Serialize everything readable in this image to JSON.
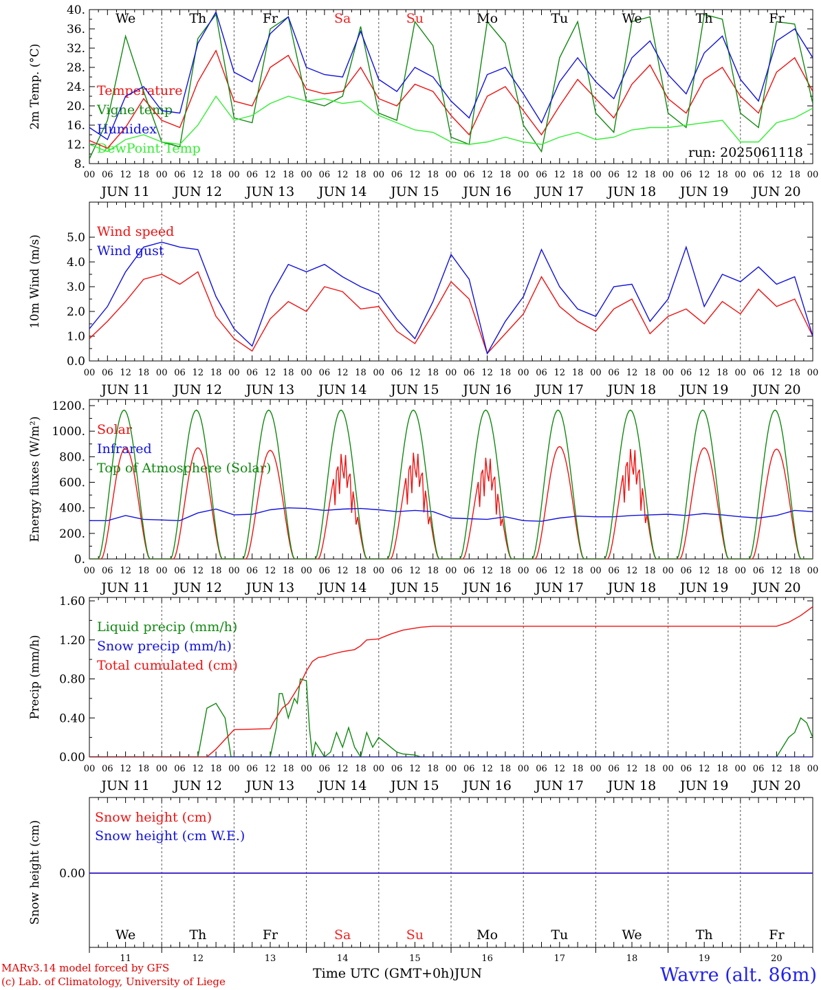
{
  "meta": {
    "run": "run: 2025061118",
    "credit_line1": "MARv3.14 model forced by GFS",
    "credit_line2": "(c) Lab. of Climatology, University of Liege",
    "station": "Wavre (alt. 86m)",
    "time_axis_label": "Time UTC (GMT+0h)",
    "month": "JUN",
    "hour_labels": [
      "00",
      "06",
      "12",
      "18"
    ],
    "end_hour_label": "00",
    "day_labels": [
      "JUN 11",
      "JUN 12",
      "JUN 13",
      "JUN 14",
      "JUN 15",
      "JUN 16",
      "JUN 17",
      "JUN 18",
      "JUN 19",
      "JUN 20"
    ],
    "day_numbers": [
      "11",
      "12",
      "13",
      "14",
      "15",
      "16",
      "17",
      "18",
      "19",
      "20"
    ],
    "weekdays": [
      {
        "name": "We",
        "weekend": false
      },
      {
        "name": "Th",
        "weekend": false
      },
      {
        "name": "Fr",
        "weekend": false
      },
      {
        "name": "Sa",
        "weekend": true
      },
      {
        "name": "Su",
        "weekend": true
      },
      {
        "name": "Mo",
        "weekend": false
      },
      {
        "name": "Tu",
        "weekend": false
      },
      {
        "name": "We",
        "weekend": false
      },
      {
        "name": "Th",
        "weekend": false
      },
      {
        "name": "Fr",
        "weekend": false
      }
    ],
    "colors": {
      "red": "#ee1111",
      "green": "#118811",
      "blue": "#1111dd",
      "light_green": "#33ee33",
      "weekend": "#ee2222"
    }
  },
  "chart_data": [
    {
      "type": "line",
      "ylabel": "2m Temp. (°C)",
      "ylim": [
        8,
        40
      ],
      "y_ticks": [
        "8.",
        "12.",
        "16.",
        "20.",
        "24.",
        "28.",
        "32.",
        "36.",
        "40."
      ],
      "x_range_hours": [
        0,
        240
      ],
      "series": [
        {
          "name": "Temperature",
          "color": "#ee1111",
          "x_hours": [
            0,
            6,
            12,
            18,
            24,
            30,
            36,
            42,
            48,
            54,
            60,
            66,
            72,
            78,
            84,
            90,
            96,
            102,
            108,
            114,
            120,
            126,
            132,
            138,
            144,
            150,
            156,
            162,
            168,
            174,
            180,
            186,
            192,
            198,
            204,
            210,
            216,
            222,
            228,
            234,
            240
          ],
          "values": [
            12.8,
            11.2,
            15.5,
            21.5,
            17.0,
            15.5,
            25.0,
            31.5,
            21.0,
            20.0,
            28.0,
            30.5,
            23.5,
            22.5,
            23.0,
            28.0,
            21.5,
            20.0,
            24.5,
            23.0,
            18.0,
            14.0,
            22.0,
            24.0,
            19.0,
            14.0,
            20.0,
            25.5,
            21.5,
            17.5,
            24.5,
            28.5,
            21.5,
            18.5,
            25.5,
            28.0,
            22.0,
            18.5,
            27.0,
            30.0,
            23.0
          ]
        },
        {
          "name": "Vigne temp",
          "color": "#118811",
          "x_hours": [
            0,
            6,
            12,
            18,
            24,
            30,
            36,
            42,
            48,
            54,
            60,
            66,
            72,
            78,
            84,
            90,
            96,
            102,
            108,
            114,
            120,
            126,
            132,
            138,
            144,
            150,
            156,
            162,
            168,
            174,
            180,
            186,
            192,
            198,
            204,
            210,
            216,
            222,
            228,
            234,
            240
          ],
          "values": [
            9.0,
            17.0,
            34.5,
            23.0,
            12.5,
            11.5,
            34.0,
            39.0,
            17.5,
            16.5,
            36.0,
            38.5,
            21.0,
            20.0,
            22.0,
            36.5,
            18.5,
            17.0,
            37.5,
            32.5,
            13.5,
            12.0,
            37.5,
            33.0,
            16.0,
            10.5,
            30.0,
            37.5,
            18.5,
            14.5,
            37.5,
            38.5,
            18.5,
            15.5,
            39.0,
            38.0,
            18.5,
            15.5,
            37.5,
            37.0,
            20.5
          ]
        },
        {
          "name": "Humidex",
          "color": "#1111dd",
          "x_hours": [
            0,
            6,
            12,
            18,
            24,
            30,
            36,
            42,
            48,
            54,
            60,
            66,
            72,
            78,
            84,
            90,
            96,
            102,
            108,
            114,
            120,
            126,
            132,
            138,
            144,
            150,
            156,
            162,
            168,
            174,
            180,
            186,
            192,
            198,
            204,
            210,
            216,
            222,
            228,
            234,
            240
          ],
          "values": [
            15.5,
            13.0,
            22.0,
            24.0,
            19.0,
            18.5,
            33.0,
            39.5,
            27.0,
            25.0,
            35.0,
            38.5,
            28.0,
            26.5,
            26.0,
            35.5,
            25.5,
            23.0,
            28.0,
            26.0,
            21.0,
            17.5,
            26.5,
            28.0,
            22.5,
            16.5,
            25.0,
            30.0,
            25.0,
            21.5,
            30.0,
            33.5,
            26.5,
            22.5,
            31.0,
            34.5,
            25.5,
            21.0,
            33.5,
            36.0,
            30.0
          ]
        },
        {
          "name": "DewPoint Temp",
          "color": "#33ee33",
          "x_hours": [
            0,
            6,
            12,
            18,
            24,
            30,
            36,
            42,
            48,
            54,
            60,
            66,
            72,
            78,
            84,
            90,
            96,
            102,
            108,
            114,
            120,
            126,
            132,
            138,
            144,
            150,
            156,
            162,
            168,
            174,
            180,
            186,
            192,
            198,
            204,
            210,
            216,
            222,
            228,
            234,
            240
          ],
          "values": [
            12.0,
            10.5,
            13.0,
            14.0,
            12.5,
            12.0,
            16.0,
            22.0,
            17.0,
            18.0,
            20.5,
            22.0,
            21.0,
            21.5,
            20.5,
            21.0,
            18.0,
            16.5,
            15.0,
            14.5,
            12.5,
            12.0,
            12.5,
            13.5,
            12.5,
            12.0,
            13.5,
            14.5,
            13.0,
            13.5,
            15.0,
            15.5,
            15.5,
            16.0,
            16.5,
            17.0,
            12.5,
            12.5,
            16.5,
            17.5,
            19.5
          ]
        }
      ]
    },
    {
      "type": "line",
      "ylabel": "10m Wind (m/s)",
      "ylim": [
        0,
        5
      ],
      "y_ticks": [
        "0.0",
        "1.0",
        "2.0",
        "3.0",
        "4.0",
        "5.0"
      ],
      "x_range_hours": [
        0,
        240
      ],
      "series": [
        {
          "name": "Wind speed",
          "color": "#ee1111",
          "x_hours": [
            0,
            6,
            12,
            18,
            24,
            30,
            36,
            42,
            48,
            54,
            60,
            66,
            72,
            78,
            84,
            90,
            96,
            102,
            108,
            114,
            120,
            126,
            132,
            138,
            144,
            150,
            156,
            162,
            168,
            174,
            180,
            186,
            192,
            198,
            204,
            210,
            216,
            222,
            228,
            234,
            240
          ],
          "values": [
            0.9,
            1.6,
            2.4,
            3.3,
            3.5,
            3.1,
            3.6,
            1.8,
            0.9,
            0.4,
            1.7,
            2.4,
            2.0,
            3.0,
            2.8,
            2.1,
            2.2,
            1.2,
            0.7,
            1.9,
            3.2,
            2.5,
            0.3,
            1.1,
            1.9,
            3.4,
            2.2,
            1.6,
            1.2,
            2.1,
            2.5,
            1.1,
            1.8,
            2.1,
            1.5,
            2.4,
            1.9,
            2.9,
            2.2,
            2.5,
            1.0
          ]
        },
        {
          "name": "Wind gust",
          "color": "#1111dd",
          "x_hours": [
            0,
            6,
            12,
            18,
            24,
            30,
            36,
            42,
            48,
            54,
            60,
            66,
            72,
            78,
            84,
            90,
            96,
            102,
            108,
            114,
            120,
            126,
            132,
            138,
            144,
            150,
            156,
            162,
            168,
            174,
            180,
            186,
            192,
            198,
            204,
            210,
            216,
            222,
            228,
            234,
            240
          ],
          "values": [
            1.3,
            2.2,
            3.6,
            4.6,
            4.8,
            4.6,
            4.5,
            2.6,
            1.3,
            0.6,
            2.6,
            3.9,
            3.6,
            3.9,
            3.4,
            3.0,
            2.7,
            1.7,
            0.9,
            2.4,
            4.3,
            3.3,
            0.3,
            1.6,
            2.6,
            4.5,
            3.0,
            2.1,
            1.8,
            3.0,
            3.1,
            1.6,
            2.5,
            4.6,
            2.2,
            3.5,
            3.2,
            3.8,
            3.1,
            3.4,
            1.0
          ]
        }
      ]
    },
    {
      "type": "line",
      "ylabel": "Energy fluxes (W/m²)",
      "ylim": [
        0,
        1200
      ],
      "y_ticks": [
        "0.",
        "200.",
        "400.",
        "600.",
        "800.",
        "1000.",
        "1200."
      ],
      "x_range_hours": [
        0,
        240
      ],
      "series": [
        {
          "name": "Solar",
          "color": "#ee1111",
          "day_peaks": [
            870,
            870,
            850,
            840,
            850,
            810,
            880,
            880,
            870,
            860
          ],
          "dip_days": [
            3,
            4,
            5,
            7
          ],
          "day_start_hour": 4,
          "day_end_hour": 20
        },
        {
          "name": "Infrared",
          "color": "#1111dd",
          "x_hours": [
            0,
            6,
            12,
            18,
            24,
            30,
            36,
            42,
            48,
            54,
            60,
            66,
            72,
            78,
            84,
            90,
            96,
            102,
            108,
            114,
            120,
            126,
            132,
            138,
            144,
            150,
            156,
            162,
            168,
            174,
            180,
            186,
            192,
            198,
            204,
            210,
            216,
            222,
            228,
            234,
            240
          ],
          "values": [
            300,
            300,
            340,
            310,
            305,
            300,
            360,
            390,
            345,
            350,
            385,
            400,
            395,
            380,
            390,
            395,
            385,
            370,
            380,
            370,
            320,
            315,
            310,
            330,
            300,
            295,
            320,
            335,
            330,
            330,
            340,
            345,
            350,
            340,
            355,
            345,
            330,
            320,
            340,
            380,
            370
          ]
        },
        {
          "name": "Top of Atmosphere (Solar)",
          "color": "#118811",
          "day_peaks": [
            1165,
            1165,
            1165,
            1165,
            1165,
            1165,
            1165,
            1165,
            1165,
            1165
          ],
          "day_start_hour": 3,
          "day_end_hour": 20
        }
      ]
    },
    {
      "type": "line",
      "ylabel": "Precip (mm/h)",
      "ylim": [
        0,
        1.6
      ],
      "y_ticks": [
        "0.00",
        "0.40",
        "0.80",
        "1.20",
        "1.60"
      ],
      "x_range_hours": [
        0,
        240
      ],
      "series": [
        {
          "name": "Liquid precip (mm/h)",
          "color": "#118811",
          "x_hours": [
            0,
            30,
            36,
            39,
            42,
            45,
            47,
            48,
            54,
            60,
            62,
            63,
            64,
            66,
            68,
            69,
            70,
            72,
            73,
            74,
            75,
            76,
            78,
            80,
            82,
            84,
            86,
            88,
            90,
            92,
            94,
            96,
            98,
            100,
            102,
            104,
            108,
            110,
            114,
            120,
            228,
            232,
            234,
            236,
            238,
            240
          ],
          "values": [
            0,
            0,
            0,
            0.5,
            0.55,
            0.4,
            0.0,
            0,
            0,
            0,
            0.3,
            0.65,
            0.65,
            0.4,
            0.6,
            0.55,
            0.8,
            0.78,
            0.3,
            0.0,
            0.15,
            0.1,
            0.0,
            0.05,
            0.25,
            0.1,
            0.3,
            0.1,
            0.0,
            0.25,
            0.1,
            0.2,
            0.15,
            0.1,
            0.05,
            0.03,
            0.02,
            0.0,
            0,
            0,
            0.0,
            0.2,
            0.25,
            0.4,
            0.35,
            0.2
          ]
        },
        {
          "name": "Snow precip (mm/h)",
          "color": "#1111dd",
          "x_hours": [
            0,
            240
          ],
          "values": [
            0,
            0
          ]
        },
        {
          "name": "Total cumulated (cm)",
          "color": "#ee1111",
          "x_hours": [
            0,
            39,
            42,
            45,
            48,
            60,
            61,
            64,
            66,
            68,
            70,
            72,
            74,
            76,
            78,
            80,
            84,
            88,
            90,
            92,
            96,
            100,
            104,
            108,
            110,
            114,
            120,
            228,
            232,
            236,
            240
          ],
          "values": [
            0,
            0,
            0.08,
            0.18,
            0.28,
            0.29,
            0.35,
            0.5,
            0.55,
            0.65,
            0.75,
            0.88,
            0.98,
            1.02,
            1.03,
            1.05,
            1.08,
            1.1,
            1.14,
            1.2,
            1.21,
            1.26,
            1.3,
            1.32,
            1.33,
            1.34,
            1.34,
            1.34,
            1.38,
            1.45,
            1.54
          ]
        }
      ]
    },
    {
      "type": "line",
      "ylabel": "Snow height (cm)",
      "y_ticks": [
        "0.00"
      ],
      "x_range_hours": [
        0,
        240
      ],
      "series": [
        {
          "name": "Snow height (cm)",
          "color": "#ee1111",
          "x_hours": [
            0,
            240
          ],
          "values": [
            0,
            0
          ]
        },
        {
          "name": "Snow height (cm W.E.)",
          "color": "#1111dd",
          "x_hours": [
            0,
            240
          ],
          "values": [
            0,
            0
          ]
        }
      ]
    }
  ]
}
